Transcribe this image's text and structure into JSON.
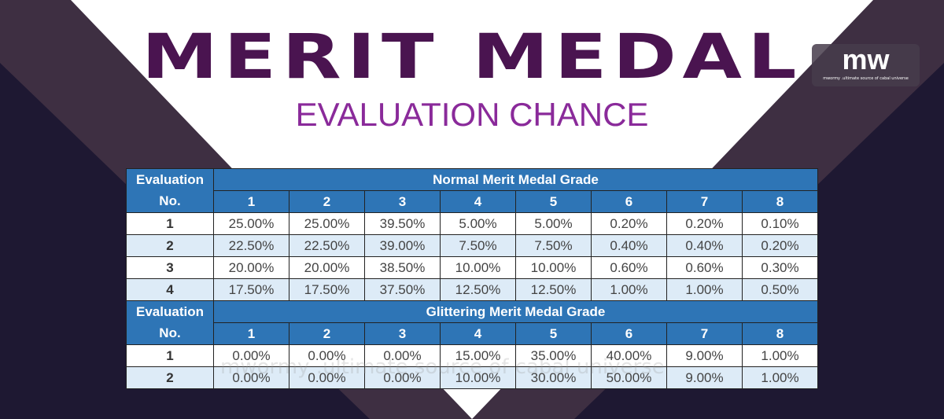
{
  "title": "MERIT MEDAL",
  "subtitle": "EVALUATION CHANCE",
  "logo": {
    "mark": "mw",
    "tagline": "mwormy .ultimate source of cabal universe"
  },
  "watermark": "mwormy .ultimate source of cabal universe",
  "colors": {
    "header": "#2e75b6",
    "alt_row": "#ddebf7",
    "title": "#4a1450",
    "subtitle": "#8a2a9a"
  },
  "tables": [
    {
      "eval_label_1": "Evaluation",
      "eval_label_2": "No.",
      "grade_title": "Normal Merit Medal Grade",
      "grades": [
        "1",
        "2",
        "3",
        "4",
        "5",
        "6",
        "7",
        "8"
      ],
      "rows": [
        {
          "no": "1",
          "values": [
            "25.00%",
            "25.00%",
            "39.50%",
            "5.00%",
            "5.00%",
            "0.20%",
            "0.20%",
            "0.10%"
          ]
        },
        {
          "no": "2",
          "values": [
            "22.50%",
            "22.50%",
            "39.00%",
            "7.50%",
            "7.50%",
            "0.40%",
            "0.40%",
            "0.20%"
          ]
        },
        {
          "no": "3",
          "values": [
            "20.00%",
            "20.00%",
            "38.50%",
            "10.00%",
            "10.00%",
            "0.60%",
            "0.60%",
            "0.30%"
          ]
        },
        {
          "no": "4",
          "values": [
            "17.50%",
            "17.50%",
            "37.50%",
            "12.50%",
            "12.50%",
            "1.00%",
            "1.00%",
            "0.50%"
          ]
        }
      ]
    },
    {
      "eval_label_1": "Evaluation",
      "eval_label_2": "No.",
      "grade_title": "Glittering Merit Medal Grade",
      "grades": [
        "1",
        "2",
        "3",
        "4",
        "5",
        "6",
        "7",
        "8"
      ],
      "rows": [
        {
          "no": "1",
          "values": [
            "0.00%",
            "0.00%",
            "0.00%",
            "15.00%",
            "35.00%",
            "40.00%",
            "9.00%",
            "1.00%"
          ]
        },
        {
          "no": "2",
          "values": [
            "0.00%",
            "0.00%",
            "0.00%",
            "10.00%",
            "30.00%",
            "50.00%",
            "9.00%",
            "1.00%"
          ]
        }
      ]
    }
  ]
}
